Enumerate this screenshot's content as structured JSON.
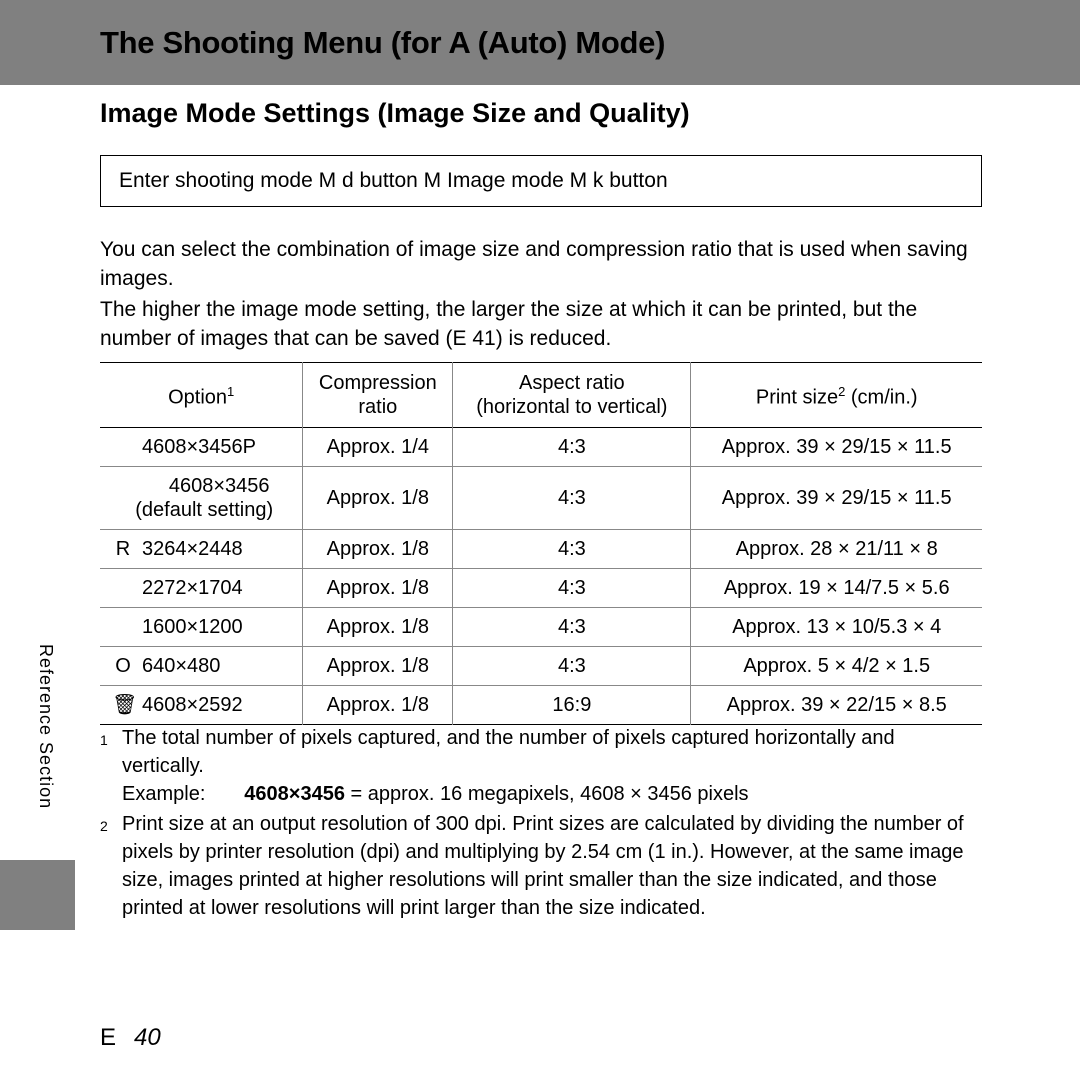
{
  "header": {
    "title": "The Shooting Menu (for A   (Auto) Mode)"
  },
  "subtitle": "Image Mode Settings (Image Size and Quality)",
  "navbox": "Enter shooting mode M d      button M Image mode M k   button",
  "body": {
    "p1": "You can select the combination of image size and compression ratio that is used when saving images.",
    "p2a": "The higher the image mode setting, the larger the size at which it can be printed, but the number of images that can be saved (",
    "p2ref": "E   41",
    "p2b": ") is reduced."
  },
  "table": {
    "headers": {
      "c1a": "Option",
      "c1sup": "1",
      "c2a": "Compression",
      "c2b": "ratio",
      "c3a": "Aspect ratio",
      "c3b": "(horizontal to vertical)",
      "c4a": "Print size",
      "c4sup": "2",
      "c4b": " (cm/in.)"
    },
    "rows": [
      {
        "icon": "",
        "label": "4608×3456P",
        "extra": "",
        "comp": "Approx. 1/4",
        "aspect": "4:3",
        "print": "Approx. 39 × 29/15 × 11.5"
      },
      {
        "icon": "",
        "label": "4608×3456",
        "extra": "(default setting)",
        "comp": "Approx. 1/8",
        "aspect": "4:3",
        "print": "Approx. 39 × 29/15 × 11.5"
      },
      {
        "icon": "R",
        "label": "3264×2448",
        "extra": "",
        "comp": "Approx. 1/8",
        "aspect": "4:3",
        "print": "Approx. 28 × 21/11 × 8"
      },
      {
        "icon": "",
        "label": "2272×1704",
        "extra": "",
        "comp": "Approx. 1/8",
        "aspect": "4:3",
        "print": "Approx. 19 × 14/7.5 × 5.6"
      },
      {
        "icon": "",
        "label": "1600×1200",
        "extra": "",
        "comp": "Approx. 1/8",
        "aspect": "4:3",
        "print": "Approx. 13 × 10/5.3 × 4"
      },
      {
        "icon": "O",
        "label": "640×480",
        "extra": "",
        "comp": "Approx. 1/8",
        "aspect": "4:3",
        "print": "Approx. 5 × 4/2 × 1.5"
      },
      {
        "icon": "🗑",
        "label": "4608×2592",
        "extra": "",
        "comp": "Approx. 1/8",
        "aspect": "16:9",
        "print": "Approx. 39 × 22/15 × 8.5"
      }
    ]
  },
  "footnotes": {
    "f1a": "The total number of pixels captured, and the number of pixels captured horizontally and vertically.",
    "f1ex_label": "Example:",
    "f1ex_bold": "4608×3456",
    "f1ex_tail": " = approx. 16 megapixels, 4608 × 3456 pixels",
    "f2": "Print size at an output resolution of 300 dpi. Print sizes are calculated by dividing the number of pixels by printer resolution (dpi) and multiplying by 2.54 cm (1 in.). However, at the same image size, images printed at higher resolutions will print smaller than the size indicated, and those printed at lower resolutions will print larger than the size indicated."
  },
  "side": {
    "tab": "Reference Section"
  },
  "pagenum": {
    "prefix": "E",
    "num": "40"
  }
}
